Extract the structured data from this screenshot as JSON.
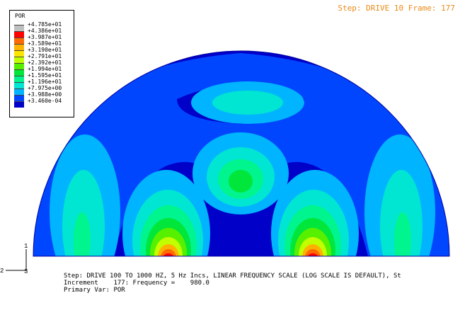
{
  "header": {
    "step_frame": "Step: DRIVE 10 Frame: 177"
  },
  "legend": {
    "title": "POR",
    "labels": [
      "+4.785e+01",
      "+4.386e+01",
      "+3.987e+01",
      "+3.589e+01",
      "+3.190e+01",
      "+2.791e+01",
      "+2.392e+01",
      "+1.994e+01",
      "+1.595e+01",
      "+1.196e+01",
      "+7.975e+00",
      "+3.988e+00",
      "+3.460e-04"
    ],
    "colors": [
      "#c0c0c0",
      "#ff0000",
      "#ff6a00",
      "#ffb300",
      "#ffe600",
      "#c2ff00",
      "#56f000",
      "#00e63a",
      "#00f58e",
      "#00e6d2",
      "#00b4ff",
      "#0046ff",
      "#0000c8"
    ]
  },
  "info": {
    "step": "Step: DRIVE 100 TO 1000 HZ, 5 Hz Incs, LINEAR FREQUENCY SCALE (LOG SCALE IS DEFAULT), St",
    "increment": "Increment    177: Frequency =    980.0",
    "primary_var": "Primary Var: POR"
  },
  "triad": {
    "vertical": "1",
    "horizontal": "2",
    "normal": "3"
  }
}
